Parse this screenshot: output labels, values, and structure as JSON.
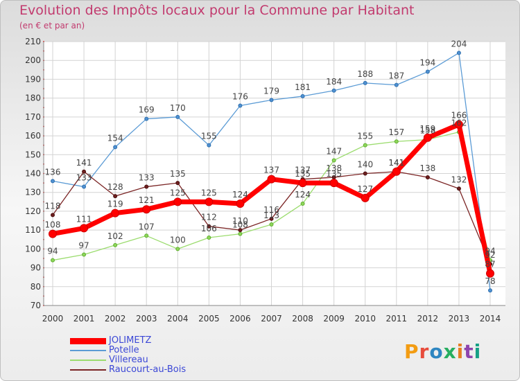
{
  "header": {
    "title": "Evolution des Impôts locaux pour la Commune par Habitant",
    "subtitle": "(en € et par an)"
  },
  "logo": {
    "text": "Proxiti",
    "colors": [
      "#f39c12",
      "#e74c3c",
      "#2e86c1",
      "#27ae60",
      "#e67e22",
      "#8e44ad",
      "#16a085"
    ]
  },
  "chart_data": {
    "type": "line",
    "title": "Evolution des Impôts locaux pour la Commune par Habitant",
    "subtitle": "(en € et par an)",
    "x": [
      "2000",
      "2001",
      "2002",
      "2003",
      "2004",
      "2005",
      "2006",
      "2007",
      "2008",
      "2009",
      "2010",
      "2011",
      "2012",
      "2013",
      "2014"
    ],
    "ylim": [
      70,
      210
    ],
    "yticks": [
      70,
      80,
      90,
      100,
      110,
      120,
      130,
      140,
      150,
      160,
      170,
      180,
      190,
      200,
      210
    ],
    "grid": true,
    "legend_position": "bottom-left",
    "series": [
      {
        "name": "JOLIMETZ",
        "color": "#ff0000",
        "values": [
          108,
          111,
          119,
          121,
          125,
          125,
          124,
          137,
          135,
          135,
          127,
          141,
          159,
          166,
          87
        ],
        "labels": [
          "108",
          "111",
          "119",
          "121",
          "125",
          "125",
          "124",
          "137",
          "135",
          "135",
          "127",
          "141",
          "159",
          "166",
          "87"
        ]
      },
      {
        "name": "Potelle",
        "color": "#5b9bd5",
        "values": [
          136,
          133,
          154,
          169,
          170,
          155,
          176,
          179,
          181,
          184,
          188,
          187,
          194,
          204,
          78
        ],
        "labels": [
          "136",
          "133",
          "154",
          "169",
          "170",
          "155",
          "176",
          "179",
          "181",
          "184",
          "188",
          "187",
          "194",
          "204",
          "78"
        ]
      },
      {
        "name": "Villereau",
        "color": "#9bdc6e",
        "values": [
          94,
          97,
          102,
          107,
          100,
          106,
          108,
          113,
          124,
          147,
          155,
          157,
          158,
          162,
          94
        ],
        "labels": [
          "94",
          "97",
          "102",
          "107",
          "100",
          "106",
          "108",
          "113",
          "124",
          "147",
          "155",
          "157",
          "158",
          "162",
          "94"
        ]
      },
      {
        "name": "Raucourt-au-Bois",
        "color": "#7b2525",
        "values": [
          118,
          141,
          128,
          133,
          135,
          112,
          110,
          116,
          137,
          138,
          140,
          141,
          138,
          132,
          92
        ],
        "labels": [
          "118",
          "141",
          "128",
          "133",
          "135",
          "112",
          "110",
          "116",
          "137",
          "138",
          "140",
          "141",
          "138",
          "132",
          "92"
        ]
      }
    ]
  }
}
